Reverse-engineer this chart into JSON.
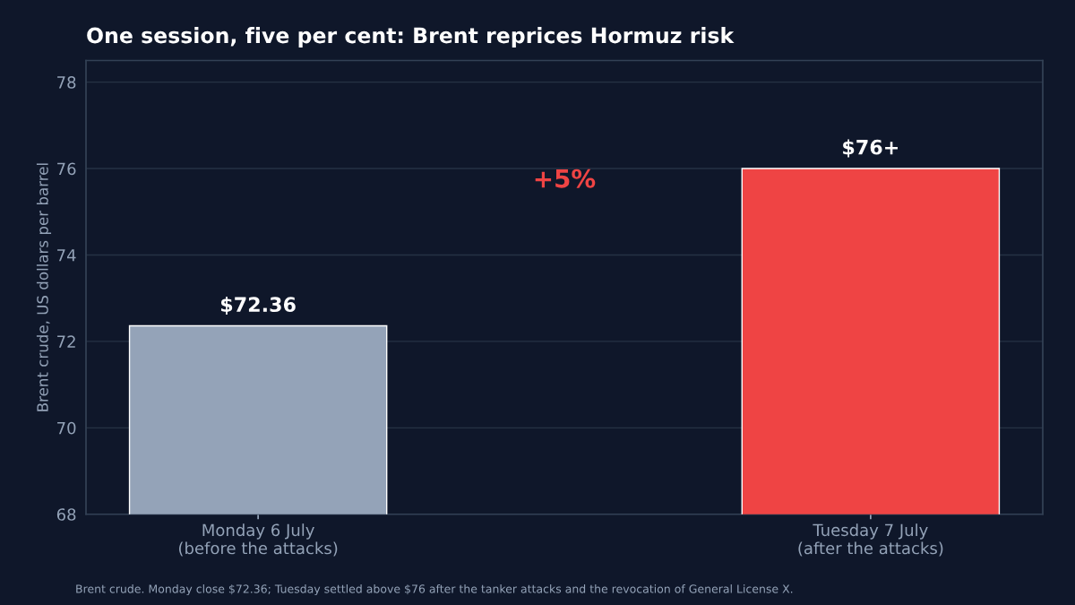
{
  "chart_data": {
    "type": "bar",
    "title": "One session, five per cent: Brent reprices Hormuz risk",
    "categories": [
      "Monday 6 July\n(before the attacks)",
      "Tuesday 7 July\n(after the attacks)"
    ],
    "values": [
      72.36,
      76
    ],
    "colors": [
      "#94a3b8",
      "#ef4444"
    ],
    "value_labels": [
      "$72.36",
      "$76+"
    ],
    "ylabel": "Brent crude, US dollars per barrel",
    "ylim": [
      68,
      78.5
    ],
    "yticks": [
      68,
      70,
      72,
      74,
      76,
      78
    ],
    "grid": "y",
    "legend": false,
    "annotations": [
      "+5%",
      "Brent crude. Monday close $72.36; Tuesday settled above $76 after the tanker attacks and the revocation of General License X."
    ]
  }
}
